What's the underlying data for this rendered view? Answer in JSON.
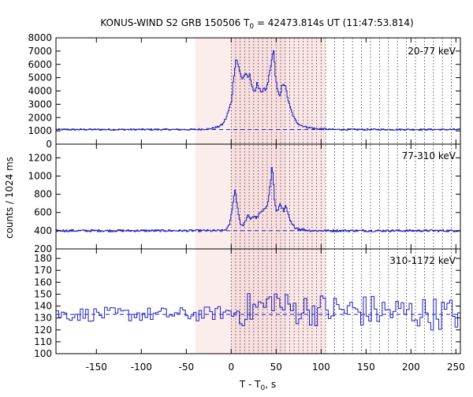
{
  "chart_data": {
    "type": "line",
    "title_main": "KONUS-WIND S2 GRB 150506 T",
    "title_sub": "0",
    "title_rest": " = 42473.814s UT (11:47:53.814)",
    "ylabel": "counts / 1024 ms",
    "xlabel_main": "T - T",
    "xlabel_sub": "0",
    "xlabel_rest": ", s",
    "xlim": [
      -195,
      255
    ],
    "x_ticks": [
      -150,
      -100,
      -50,
      0,
      50,
      100,
      150,
      200,
      250
    ],
    "x_tick_labels": [
      "-150",
      "-100",
      "-50",
      "0",
      "50",
      "100",
      "150",
      "200",
      "250"
    ],
    "grid": false,
    "colors": {
      "series": "#1f1fbf",
      "background": "#cc0000",
      "shaded_region": "#f8d7d7",
      "dotted_lines": "#333333"
    },
    "shaded_regions": [
      {
        "x0": -40,
        "x1": 0,
        "opacity": 0.45
      },
      {
        "x0": 0,
        "x1": 60,
        "opacity": 0.8
      },
      {
        "x0": 60,
        "x1": 105,
        "opacity": 0.6
      }
    ],
    "vertical_dotted_lines": [
      0,
      5,
      10,
      15,
      20,
      25,
      30,
      35,
      40,
      45,
      50,
      55,
      60,
      65,
      70,
      75,
      80,
      85,
      90,
      95,
      100,
      105,
      115,
      125,
      135,
      145,
      155,
      165,
      175,
      185,
      195,
      205,
      215,
      225,
      235,
      245
    ],
    "panels": [
      {
        "label": "20-77 keV",
        "ylim": [
          0,
          8000
        ],
        "y_ticks": [
          0,
          1000,
          2000,
          3000,
          4000,
          5000,
          6000,
          7000,
          8000
        ],
        "y_tick_labels": [
          "0",
          "1000",
          "2000",
          "3000",
          "4000",
          "5000",
          "6000",
          "7000",
          "8000"
        ],
        "background_level": 1100,
        "noise": 60,
        "x": [
          -195,
          -40,
          -25,
          -15,
          -10,
          -6,
          -3,
          0,
          1,
          3,
          5,
          7,
          9,
          12,
          15,
          18,
          20,
          22,
          24,
          26,
          28,
          30,
          32,
          34,
          36,
          38,
          40,
          42,
          44,
          46,
          47,
          48,
          49,
          50,
          52,
          54,
          56,
          58,
          60,
          62,
          64,
          66,
          68,
          70,
          72,
          75,
          78,
          82,
          86,
          90,
          95,
          100,
          110,
          130,
          160,
          200,
          255
        ],
        "y": [
          1100,
          1100,
          1150,
          1300,
          1500,
          2000,
          2600,
          3300,
          4200,
          5500,
          6500,
          6000,
          5400,
          4900,
          5300,
          5000,
          5200,
          4600,
          4100,
          3800,
          4700,
          4300,
          4000,
          3800,
          4200,
          4000,
          4500,
          5300,
          6000,
          7100,
          6800,
          5800,
          5000,
          4500,
          3800,
          3500,
          4400,
          4600,
          4300,
          3600,
          3000,
          2600,
          2200,
          1900,
          1700,
          1500,
          1400,
          1300,
          1250,
          1200,
          1150,
          1150,
          1100,
          1100,
          1100,
          1100,
          1100
        ]
      },
      {
        "label": "77-310 keV",
        "ylim": [
          200,
          1350
        ],
        "y_ticks": [
          200,
          400,
          600,
          800,
          1000,
          1200
        ],
        "y_tick_labels": [
          "200",
          "400",
          "600",
          "800",
          "1000",
          "1200"
        ],
        "background_level": 400,
        "noise": 12,
        "x": [
          -195,
          -10,
          -5,
          -2,
          0,
          2,
          4,
          6,
          8,
          10,
          12,
          15,
          18,
          21,
          24,
          28,
          32,
          36,
          40,
          43,
          45,
          46,
          47,
          48,
          50,
          52,
          54,
          56,
          58,
          60,
          62,
          64,
          67,
          70,
          75,
          80,
          90,
          110,
          150,
          200,
          255
        ],
        "y": [
          400,
          400,
          420,
          480,
          600,
          750,
          860,
          700,
          560,
          470,
          450,
          500,
          560,
          530,
          560,
          540,
          600,
          620,
          700,
          900,
          1130,
          1000,
          850,
          700,
          600,
          640,
          700,
          660,
          600,
          680,
          600,
          540,
          470,
          440,
          420,
          410,
          400,
          400,
          400,
          400,
          400
        ]
      },
      {
        "label": "310-1172 keV",
        "ylim": [
          100,
          188
        ],
        "y_ticks": [
          100,
          110,
          120,
          130,
          140,
          150,
          160,
          170,
          180
        ],
        "y_tick_labels": [
          "100",
          "110",
          "120",
          "130",
          "140",
          "150",
          "160",
          "170",
          "180"
        ],
        "background_level": 133,
        "noise_pre": 6,
        "noise_post": 14,
        "x": [
          -195,
          -40,
          0,
          40,
          46,
          50,
          60,
          255
        ],
        "y": [
          133,
          133,
          135,
          140,
          150,
          142,
          138,
          133
        ]
      }
    ]
  }
}
